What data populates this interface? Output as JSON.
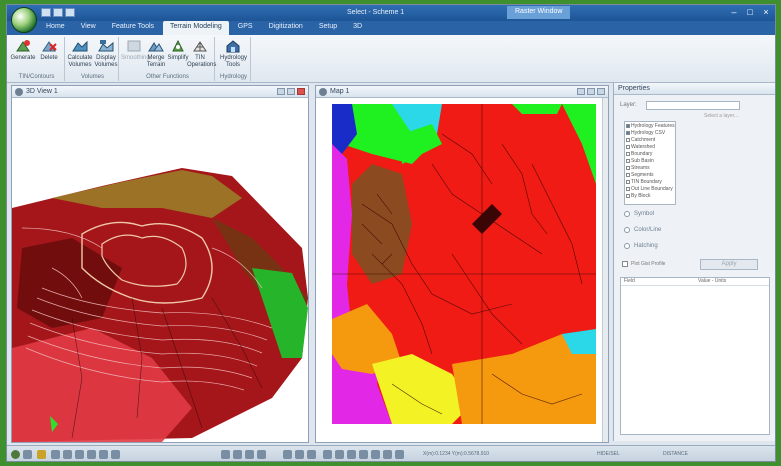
{
  "window": {
    "title": "Select - Scheme 1",
    "context_tab": "Raster Window",
    "minimize": "–",
    "maximize": "□",
    "close": "×"
  },
  "ribbon_tabs": [
    "Home",
    "View",
    "Feature Tools",
    "Terrain Modeling",
    "GPS",
    "Digitization",
    "Setup",
    "3D"
  ],
  "ribbon_active_tab": "Terrain Modeling",
  "ribbon": {
    "groups": [
      {
        "label": "TIN/Contours",
        "buttons": [
          "Generate",
          "Delete"
        ]
      },
      {
        "label": "Volumes",
        "buttons": [
          "Calculate Volumes",
          "Display Volumes"
        ]
      },
      {
        "label": "Other Functions",
        "buttons": [
          "Smoothing",
          "Merge Terrain",
          "Simplify",
          "TIN Operations"
        ]
      },
      {
        "label": "Hydrology",
        "buttons": [
          "Hydrology Tools"
        ]
      }
    ]
  },
  "panes": {
    "view3d_title": "3D View 1",
    "map_title": "Map 1"
  },
  "properties": {
    "title": "Properties",
    "dropdown_label": "Layer:",
    "dropdown_value": "",
    "note": "Select a layer...",
    "checklist": [
      {
        "label": "Hydrology Features",
        "checked": true
      },
      {
        "label": "Hydrology CSV",
        "checked": true
      },
      {
        "label": "Catchment",
        "checked": false
      },
      {
        "label": "Watershed",
        "checked": false
      },
      {
        "label": "Boundary",
        "checked": false
      },
      {
        "label": "Sub Basin",
        "checked": false
      },
      {
        "label": "Streams",
        "checked": false
      },
      {
        "label": "Segments",
        "checked": false
      },
      {
        "label": "TIN Boundary",
        "checked": false
      },
      {
        "label": "Out Line Boundary",
        "checked": false
      },
      {
        "label": "By Block",
        "checked": false
      }
    ],
    "radios": [
      "Symbol",
      "Color/Line",
      "Hatching"
    ],
    "check_label": "Plot Gist Profile",
    "apply_label": "Apply",
    "table_headers": [
      "Field",
      "Value - Units"
    ]
  },
  "status": {
    "coords": "X(m):0.1234  Y(m):0.5678.910",
    "left_readout": "",
    "right_readout_1": "HIDE/SEL",
    "right_readout_2": "DISTANCE"
  },
  "colors": {
    "map_red": "#ef1b14",
    "map_green": "#1ff01f",
    "map_magenta": "#e327e6",
    "map_orange": "#f59a0e",
    "map_yellow": "#f2f225",
    "map_brown": "#8b4a1f",
    "map_cyan": "#2ad8e8",
    "map_blue": "#1a2cc8"
  }
}
